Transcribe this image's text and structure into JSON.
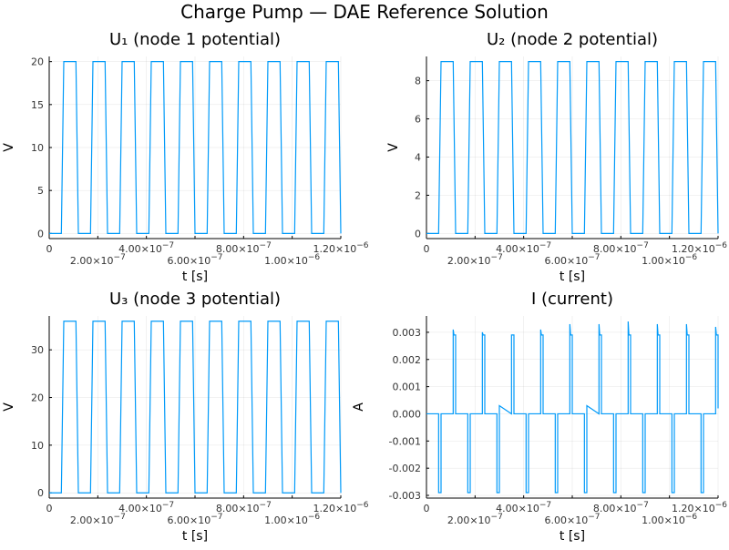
{
  "title": "Charge Pump — DAE Reference Solution",
  "line_color": "#009af9",
  "chart_data": [
    {
      "type": "line",
      "title": "U₁ (node 1 potential)",
      "xlabel": "t [s]",
      "ylabel": "V",
      "xlim": [
        0,
        1.2e-06
      ],
      "ylim": [
        -0.6,
        20.6
      ],
      "xticks": [
        0,
        2e-07,
        4e-07,
        6e-07,
        8e-07,
        1e-06,
        1.2e-06
      ],
      "xtick_labels": [
        {
          "m": "0",
          "e": ""
        },
        {
          "m": "2.00×10",
          "e": "−7"
        },
        {
          "m": "4.00×10",
          "e": "−7"
        },
        {
          "m": "6.00×10",
          "e": "−7"
        },
        {
          "m": "8.00×10",
          "e": "−7"
        },
        {
          "m": "1.00×10",
          "e": "−6"
        },
        {
          "m": "1.20×10",
          "e": "−6"
        }
      ],
      "yticks": [
        0,
        5,
        10,
        15,
        20
      ],
      "ytick_labels": [
        "0",
        "5",
        "10",
        "15",
        "20"
      ],
      "grid": true,
      "legend": "none",
      "x": [
        0,
        5e-08,
        6e-08,
        1.1e-07,
        1.2e-07,
        1.7e-07,
        1.8e-07,
        2.3e-07,
        2.4e-07,
        2.9e-07,
        3e-07,
        3.5e-07,
        3.6e-07,
        4.1e-07,
        4.2e-07,
        4.7e-07,
        4.8e-07,
        5.3e-07,
        5.4e-07,
        5.9e-07,
        6e-07,
        6.5e-07,
        6.6e-07,
        7.1e-07,
        7.2e-07,
        7.7e-07,
        7.8e-07,
        8.3e-07,
        8.4e-07,
        8.9e-07,
        9e-07,
        9.5e-07,
        9.6e-07,
        1.01e-06,
        1.02e-06,
        1.07e-06,
        1.08e-06,
        1.13e-06,
        1.14e-06,
        1.19e-06,
        1.2e-06
      ],
      "y": [
        0,
        0,
        20,
        20,
        0,
        0,
        20,
        20,
        0,
        0,
        20,
        20,
        0,
        0,
        20,
        20,
        0,
        0,
        20,
        20,
        0,
        0,
        20,
        20,
        0,
        0,
        20,
        20,
        0,
        0,
        20,
        20,
        0,
        0,
        20,
        20,
        0,
        0,
        20,
        20,
        0
      ]
    },
    {
      "type": "line",
      "title": "U₂ (node 2 potential)",
      "xlabel": "t [s]",
      "ylabel": "V",
      "xlim": [
        0,
        1.2e-06
      ],
      "ylim": [
        -0.27,
        9.27
      ],
      "xticks": [
        0,
        2e-07,
        4e-07,
        6e-07,
        8e-07,
        1e-06,
        1.2e-06
      ],
      "xtick_labels": [
        {
          "m": "0",
          "e": ""
        },
        {
          "m": "2.00×10",
          "e": "−7"
        },
        {
          "m": "4.00×10",
          "e": "−7"
        },
        {
          "m": "6.00×10",
          "e": "−7"
        },
        {
          "m": "8.00×10",
          "e": "−7"
        },
        {
          "m": "1.00×10",
          "e": "−6"
        },
        {
          "m": "1.20×10",
          "e": "−6"
        }
      ],
      "yticks": [
        0,
        2,
        4,
        6,
        8
      ],
      "ytick_labels": [
        "0",
        "2",
        "4",
        "6",
        "8"
      ],
      "grid": true,
      "legend": "none",
      "x": [
        0,
        5e-08,
        6e-08,
        1.1e-07,
        1.2e-07,
        1.7e-07,
        1.8e-07,
        2.3e-07,
        2.4e-07,
        2.9e-07,
        3e-07,
        3.5e-07,
        3.6e-07,
        4.1e-07,
        4.2e-07,
        4.7e-07,
        4.8e-07,
        5.3e-07,
        5.4e-07,
        5.9e-07,
        6e-07,
        6.5e-07,
        6.6e-07,
        7.1e-07,
        7.2e-07,
        7.7e-07,
        7.8e-07,
        8.3e-07,
        8.4e-07,
        8.9e-07,
        9e-07,
        9.5e-07,
        9.6e-07,
        1.01e-06,
        1.02e-06,
        1.07e-06,
        1.08e-06,
        1.13e-06,
        1.14e-06,
        1.19e-06,
        1.2e-06
      ],
      "y": [
        0,
        0,
        9,
        9,
        0,
        0,
        9,
        9,
        0,
        0,
        9,
        9,
        0,
        0,
        9,
        9,
        0,
        0,
        9,
        9,
        0,
        0,
        9,
        9,
        0,
        0,
        9,
        9,
        0,
        0,
        9,
        9,
        0,
        0,
        9,
        9,
        0,
        0,
        9,
        9,
        0
      ]
    },
    {
      "type": "line",
      "title": "U₃ (node 3 potential)",
      "xlabel": "t [s]",
      "ylabel": "V",
      "xlim": [
        0,
        1.2e-06
      ],
      "ylim": [
        -1.1,
        37.1
      ],
      "xticks": [
        0,
        2e-07,
        4e-07,
        6e-07,
        8e-07,
        1e-06,
        1.2e-06
      ],
      "xtick_labels": [
        {
          "m": "0",
          "e": ""
        },
        {
          "m": "2.00×10",
          "e": "−7"
        },
        {
          "m": "4.00×10",
          "e": "−7"
        },
        {
          "m": "6.00×10",
          "e": "−7"
        },
        {
          "m": "8.00×10",
          "e": "−7"
        },
        {
          "m": "1.00×10",
          "e": "−6"
        },
        {
          "m": "1.20×10",
          "e": "−6"
        }
      ],
      "yticks": [
        0,
        10,
        20,
        30
      ],
      "ytick_labels": [
        "0",
        "10",
        "20",
        "30"
      ],
      "grid": true,
      "legend": "none",
      "x": [
        0,
        5e-08,
        6e-08,
        1.1e-07,
        1.2e-07,
        1.7e-07,
        1.8e-07,
        2.3e-07,
        2.4e-07,
        2.9e-07,
        3e-07,
        3.5e-07,
        3.6e-07,
        4.1e-07,
        4.2e-07,
        4.7e-07,
        4.8e-07,
        5.3e-07,
        5.4e-07,
        5.9e-07,
        6e-07,
        6.5e-07,
        6.6e-07,
        7.1e-07,
        7.2e-07,
        7.7e-07,
        7.8e-07,
        8.3e-07,
        8.4e-07,
        8.9e-07,
        9e-07,
        9.5e-07,
        9.6e-07,
        1.01e-06,
        1.02e-06,
        1.07e-06,
        1.08e-06,
        1.13e-06,
        1.14e-06,
        1.19e-06,
        1.2e-06
      ],
      "y": [
        0,
        0,
        36,
        36,
        0,
        0,
        36,
        36,
        0,
        0,
        36,
        36,
        0,
        0,
        36,
        36,
        0,
        0,
        36,
        36,
        0,
        0,
        36,
        36,
        0,
        0,
        36,
        36,
        0,
        0,
        36,
        36,
        0,
        0,
        36,
        36,
        0,
        0,
        36,
        36,
        0
      ]
    },
    {
      "type": "line",
      "title": "I (current)",
      "xlabel": "t [s]",
      "ylabel": "A",
      "xlim": [
        0,
        1.2e-06
      ],
      "ylim": [
        -0.0031,
        0.0036
      ],
      "xticks": [
        0,
        2e-07,
        4e-07,
        6e-07,
        8e-07,
        1e-06,
        1.2e-06
      ],
      "xtick_labels": [
        {
          "m": "0",
          "e": ""
        },
        {
          "m": "2.00×10",
          "e": "−7"
        },
        {
          "m": "4.00×10",
          "e": "−7"
        },
        {
          "m": "6.00×10",
          "e": "−7"
        },
        {
          "m": "8.00×10",
          "e": "−7"
        },
        {
          "m": "1.00×10",
          "e": "−6"
        },
        {
          "m": "1.20×10",
          "e": "−6"
        }
      ],
      "yticks": [
        -0.003,
        -0.002,
        -0.001,
        0,
        0.001,
        0.002,
        0.003
      ],
      "ytick_labels": [
        "-0.003",
        "-0.002",
        "-0.001",
        "0.000",
        "0.001",
        "0.002",
        "0.003"
      ],
      "grid": true,
      "legend": "none",
      "x": [
        0,
        5e-08,
        5e-08,
        6e-08,
        6e-08,
        1.1e-07,
        1.1e-07,
        1.13e-07,
        1.2e-07,
        1.2e-07,
        1.7e-07,
        1.7e-07,
        1.8e-07,
        1.8e-07,
        2.3e-07,
        2.3e-07,
        2.33e-07,
        2.4e-07,
        2.4e-07,
        2.9e-07,
        2.9e-07,
        3e-07,
        3e-07,
        3.5e-07,
        3.5e-07,
        3.53e-07,
        3.6e-07,
        3.6e-07,
        4.1e-07,
        4.1e-07,
        4.2e-07,
        4.2e-07,
        4.7e-07,
        4.7e-07,
        4.73e-07,
        4.8e-07,
        4.8e-07,
        5.3e-07,
        5.3e-07,
        5.4e-07,
        5.4e-07,
        5.9e-07,
        5.9e-07,
        5.93e-07,
        6e-07,
        6e-07,
        6.5e-07,
        6.5e-07,
        6.6e-07,
        6.6e-07,
        7.1e-07,
        7.1e-07,
        7.13e-07,
        7.2e-07,
        7.2e-07,
        7.7e-07,
        7.7e-07,
        7.8e-07,
        7.8e-07,
        8.3e-07,
        8.3e-07,
        8.33e-07,
        8.4e-07,
        8.4e-07,
        8.9e-07,
        8.9e-07,
        9e-07,
        9e-07,
        9.5e-07,
        9.5e-07,
        9.53e-07,
        9.6e-07,
        9.6e-07,
        1.01e-06,
        1.01e-06,
        1.02e-06,
        1.02e-06,
        1.07e-06,
        1.07e-06,
        1.073e-06,
        1.08e-06,
        1.08e-06,
        1.13e-06,
        1.13e-06,
        1.14e-06,
        1.14e-06,
        1.19e-06,
        1.19e-06,
        1.193e-06,
        1.2e-06,
        1.2e-06
      ],
      "y": [
        0,
        0,
        -0.0029,
        -0.0029,
        0,
        0,
        0.0031,
        0.0029,
        0.0029,
        0,
        0,
        -0.0029,
        -0.0029,
        0,
        0,
        0.003,
        0.0029,
        0.0029,
        0,
        0,
        -0.0029,
        -0.0029,
        0.0003,
        0,
        0.0029,
        0.0029,
        0.0029,
        0,
        0,
        -0.0029,
        -0.0029,
        0,
        0,
        0.0031,
        0.0029,
        0.0029,
        0,
        0,
        -0.0029,
        -0.0029,
        0,
        0,
        0.0033,
        0.0029,
        0.0029,
        0,
        0,
        -0.0029,
        -0.0029,
        0.0003,
        0,
        0.0033,
        0.0029,
        0.0029,
        0,
        0,
        -0.0029,
        -0.0029,
        0,
        0,
        0.0034,
        0.0029,
        0.0029,
        0,
        0,
        -0.0029,
        -0.0029,
        0,
        0,
        0.0033,
        0.0029,
        0.0029,
        0,
        0,
        -0.0029,
        -0.0029,
        0,
        0,
        0.0033,
        0.0029,
        0.0029,
        0,
        0,
        -0.0029,
        -0.0029,
        0,
        0,
        0.0032,
        0.0029,
        0.0029,
        0.0002
      ]
    }
  ]
}
